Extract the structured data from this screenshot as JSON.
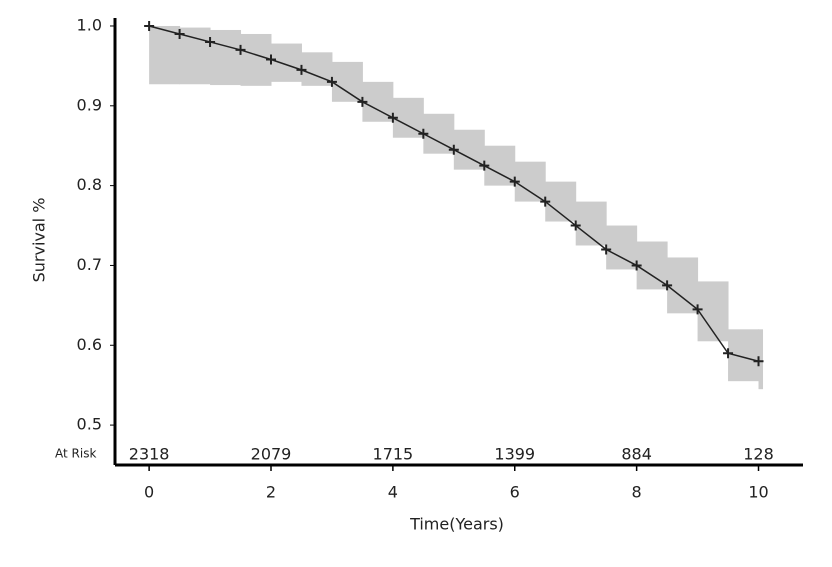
{
  "chart_data": {
    "type": "line",
    "x": [
      0,
      0.5,
      1,
      1.5,
      2,
      2.5,
      3,
      3.5,
      4,
      4.5,
      5,
      5.5,
      6,
      6.5,
      7,
      7.5,
      8,
      8.5,
      9,
      9.5,
      10
    ],
    "values": [
      1.0,
      0.99,
      0.98,
      0.97,
      0.958,
      0.945,
      0.93,
      0.905,
      0.885,
      0.865,
      0.845,
      0.825,
      0.805,
      0.78,
      0.75,
      0.72,
      0.7,
      0.675,
      0.645,
      0.59,
      0.58
    ],
    "ci_upper": [
      1.0,
      0.998,
      0.995,
      0.99,
      0.978,
      0.967,
      0.955,
      0.93,
      0.91,
      0.89,
      0.87,
      0.85,
      0.83,
      0.805,
      0.78,
      0.75,
      0.73,
      0.71,
      0.68,
      0.62,
      0.62
    ],
    "ci_lower": [
      0.927,
      0.927,
      0.926,
      0.925,
      0.93,
      0.925,
      0.905,
      0.88,
      0.86,
      0.84,
      0.82,
      0.8,
      0.78,
      0.755,
      0.725,
      0.695,
      0.67,
      0.64,
      0.605,
      0.555,
      0.545
    ],
    "color": "#222222",
    "ci_color": "#cccccc",
    "xlabel": "Time(Years)",
    "ylabel": "Survival %",
    "xlim": [
      -0.56,
      10.73
    ],
    "ylim": [
      0.45,
      1.01
    ],
    "xticks": [
      0,
      2,
      4,
      6,
      8,
      10
    ],
    "yticks": [
      0.5,
      0.6,
      0.7,
      0.8,
      0.9,
      {
        "value": 1,
        "label": "1.0"
      }
    ],
    "at_risk": {
      "label": "At Risk",
      "values": [
        2318,
        2079,
        1715,
        1399,
        884,
        128
      ]
    }
  }
}
